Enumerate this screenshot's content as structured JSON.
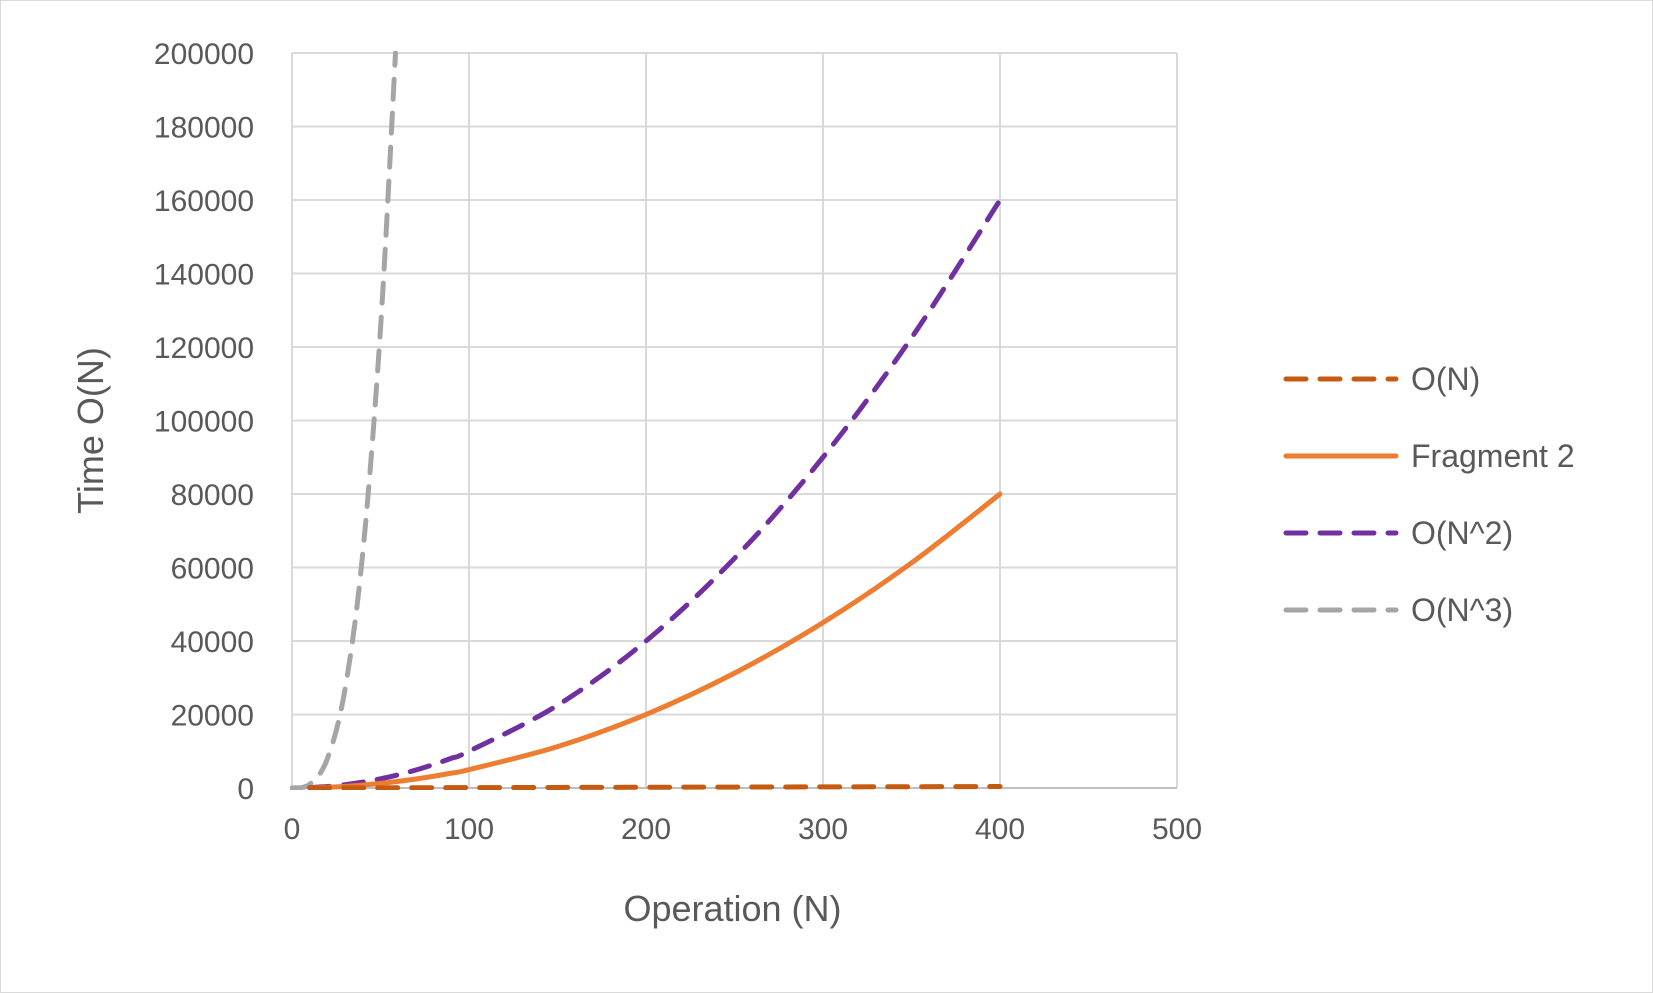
{
  "chart_data": {
    "type": "line",
    "xlabel": "Operation (N)",
    "ylabel": "Time O(N)",
    "xlim": [
      0,
      500
    ],
    "ylim": [
      0,
      200000
    ],
    "xticks": [
      0,
      100,
      200,
      300,
      400,
      500
    ],
    "yticks": [
      0,
      20000,
      40000,
      60000,
      80000,
      100000,
      120000,
      140000,
      160000,
      180000,
      200000
    ],
    "grid": true,
    "legend_position": "right",
    "series": [
      {
        "name": "O(N)",
        "color": "#c55a11",
        "dash": "dashed",
        "x": [
          10,
          20,
          30,
          40,
          50,
          60,
          70,
          80,
          90,
          100,
          150,
          200,
          250,
          300,
          350,
          400
        ],
        "y": [
          10,
          20,
          30,
          40,
          50,
          60,
          70,
          80,
          90,
          100,
          150,
          200,
          250,
          300,
          350,
          400
        ]
      },
      {
        "name": "Fragment 2",
        "color": "#ed7d31",
        "dash": "solid",
        "x": [
          10,
          20,
          30,
          40,
          50,
          60,
          70,
          80,
          90,
          100,
          150,
          200,
          250,
          300,
          350,
          400
        ],
        "y": [
          50,
          200,
          450,
          800,
          1250,
          1800,
          2450,
          3200,
          4050,
          5000,
          11250,
          20000,
          31250,
          45000,
          61250,
          80000
        ]
      },
      {
        "name": "O(N^2)",
        "color": "#7030a0",
        "dash": "dashed",
        "x": [
          10,
          20,
          30,
          40,
          50,
          60,
          70,
          80,
          90,
          100,
          150,
          200,
          250,
          300,
          350,
          400
        ],
        "y": [
          100,
          400,
          900,
          1600,
          2500,
          3600,
          4900,
          6400,
          8100,
          10000,
          22500,
          40000,
          62500,
          90000,
          122500,
          160000
        ]
      },
      {
        "name": "O(N^3)",
        "color": "#a5a5a5",
        "dash": "dashed",
        "x": [
          0,
          10,
          20,
          30,
          40,
          50,
          58.48
        ],
        "y": [
          0,
          1000,
          8000,
          27000,
          64000,
          125000,
          200000
        ]
      }
    ]
  }
}
